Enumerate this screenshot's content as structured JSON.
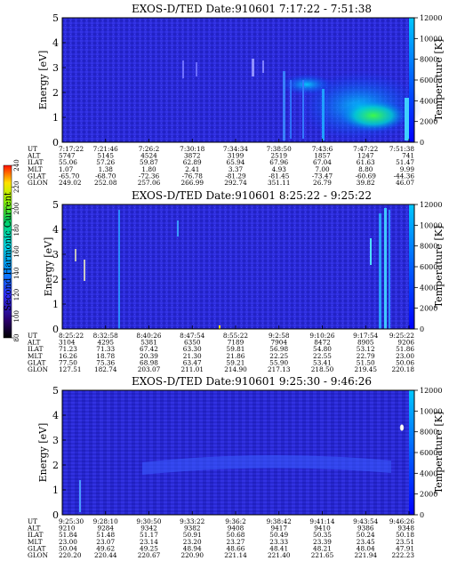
{
  "colorbar": {
    "label": "Second Harmonic Current",
    "ticks": [
      "80",
      "100",
      "120",
      "140",
      "160",
      "180",
      "200",
      "220",
      "240"
    ]
  },
  "chart_data": [
    {
      "type": "heatmap",
      "title": "EXOS-D/TED   Date:910601   7:17:22 - 7:51:38",
      "ylabel": "Energy [eV]",
      "ylabel_right": "Temperature [K]",
      "ylim": [
        0,
        5
      ],
      "ylim_right": [
        0,
        12000
      ],
      "yticks": [
        "0",
        "1",
        "2",
        "3",
        "4",
        "5"
      ],
      "yticks_right": [
        "0",
        "2000",
        "4000",
        "6000",
        "8000",
        "10000",
        "12000"
      ],
      "row_labels": [
        "UT",
        "ALT",
        "ILAT",
        "MLT",
        "GLAT",
        "GLON"
      ],
      "columns": [
        [
          "7:17:22",
          "5747",
          "55.06",
          "1.07",
          "-65.70",
          "249.02"
        ],
        [
          "7:21:46",
          "5145",
          "57.26",
          "1.38",
          "-68.70",
          "252.08"
        ],
        [
          "7:26:2",
          "4524",
          "59.87",
          "1.80",
          "-72.36",
          "257.06"
        ],
        [
          "7:30:18",
          "3872",
          "62.89",
          "2.41",
          "-76.78",
          "266.99"
        ],
        [
          "7:34:34",
          "3199",
          "65.94",
          "3.37",
          "-81.29",
          "292.74"
        ],
        [
          "7:38:50",
          "2519",
          "67.96",
          "4.93",
          "-81.45",
          "351.11"
        ],
        [
          "7:43:6",
          "1857",
          "67.04",
          "7.00",
          "-73.47",
          "26.79"
        ],
        [
          "7:47:22",
          "1247",
          "61.63",
          "8.80",
          "-60.69",
          "39.82"
        ],
        [
          "7:51:38",
          "741",
          "51.47",
          "9.99",
          "-44.36",
          "46.07"
        ]
      ]
    },
    {
      "type": "heatmap",
      "title": "EXOS-D/TED   Date:910601   8:25:22 - 9:25:22",
      "ylabel": "Energy [eV]",
      "ylabel_right": "Temperature [K]",
      "ylim": [
        0,
        5
      ],
      "ylim_right": [
        0,
        12000
      ],
      "yticks": [
        "0",
        "1",
        "2",
        "3",
        "4",
        "5"
      ],
      "yticks_right": [
        "0",
        "2000",
        "4000",
        "6000",
        "8000",
        "10000",
        "12000"
      ],
      "row_labels": [
        "UT",
        "ALT",
        "ILAT",
        "MLT",
        "GLAT",
        "GLON"
      ],
      "columns": [
        [
          "8:25:22",
          "3104",
          "71.23",
          "16.26",
          "77.50",
          "127.51"
        ],
        [
          "8:32:58",
          "4295",
          "71.33",
          "18.78",
          "75.36",
          "182.74"
        ],
        [
          "8:40:26",
          "5381",
          "67.42",
          "20.39",
          "68.98",
          "203.07"
        ],
        [
          "8:47:54",
          "6350",
          "63.30",
          "21.30",
          "63.47",
          "211.01"
        ],
        [
          "8:55:22",
          "7189",
          "59.81",
          "21.86",
          "59.21",
          "214.90"
        ],
        [
          "9:2:58",
          "7904",
          "56.98",
          "22.25",
          "55.90",
          "217.13"
        ],
        [
          "9:10:26",
          "8472",
          "54.80",
          "22.55",
          "53.41",
          "218.50"
        ],
        [
          "9:17:54",
          "8905",
          "53.12",
          "22.79",
          "51.50",
          "219.45"
        ],
        [
          "9:25:22",
          "9206",
          "51.86",
          "23.00",
          "50.06",
          "220.18"
        ]
      ]
    },
    {
      "type": "heatmap",
      "title": "EXOS-D/TED   Date:910601   9:25:30 - 9:46:26",
      "ylabel": "Energy [eV]",
      "ylabel_right": "Temperature [K]",
      "ylim": [
        0,
        5
      ],
      "ylim_right": [
        0,
        12000
      ],
      "yticks": [
        "0",
        "1",
        "2",
        "3",
        "4",
        "5"
      ],
      "yticks_right": [
        "0",
        "2000",
        "4000",
        "6000",
        "8000",
        "10000",
        "12000"
      ],
      "row_labels": [
        "UT",
        "ALT",
        "ILAT",
        "MLT",
        "GLAT",
        "GLON"
      ],
      "columns": [
        [
          "9:25:30",
          "9210",
          "51.84",
          "23.00",
          "50.04",
          "220.20"
        ],
        [
          "9:28:10",
          "9284",
          "51.48",
          "23.07",
          "49.62",
          "220.44"
        ],
        [
          "9:30:50",
          "9342",
          "51.17",
          "23.14",
          "49.25",
          "220.67"
        ],
        [
          "9:33:22",
          "9382",
          "50.91",
          "23.20",
          "48.94",
          "220.90"
        ],
        [
          "9:36:2",
          "9408",
          "50.68",
          "23.27",
          "48.66",
          "221.14"
        ],
        [
          "9:38:42",
          "9417",
          "50.49",
          "23.33",
          "48.41",
          "221.40"
        ],
        [
          "9:41:14",
          "9410",
          "50.35",
          "23.39",
          "48.21",
          "221.65"
        ],
        [
          "9:43:54",
          "9386",
          "50.24",
          "23.45",
          "48.04",
          "221.94"
        ],
        [
          "9:46:26",
          "9348",
          "50.18",
          "23.51",
          "47.91",
          "222.23"
        ]
      ]
    }
  ]
}
